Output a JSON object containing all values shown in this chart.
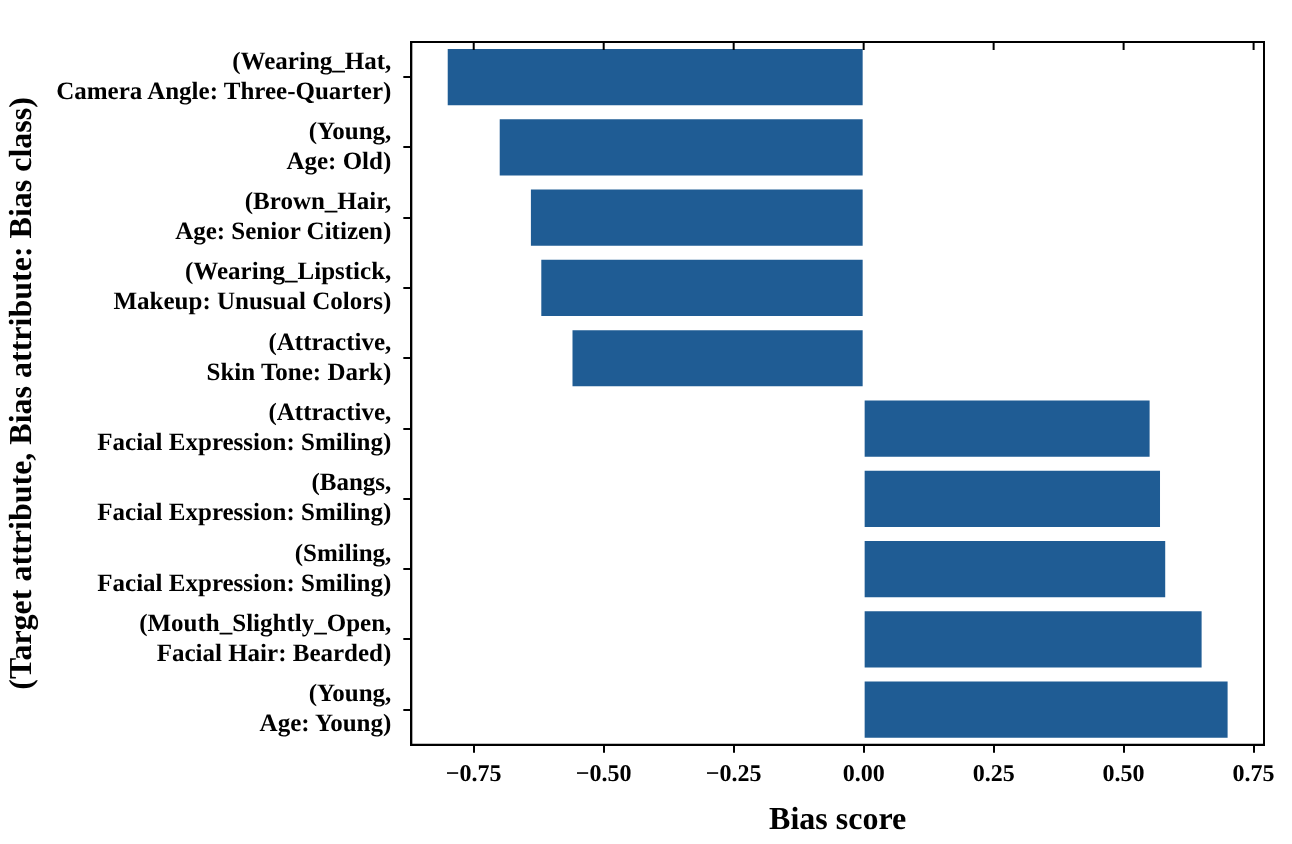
{
  "chart_data": {
    "type": "bar",
    "orientation": "horizontal",
    "xlabel": "Bias score",
    "ylabel": "(Target attribute, Bias attribute: Bias class)",
    "categories": [
      "(Wearing_Hat, Camera Angle: Three-Quarter)",
      "(Young, Age: Old)",
      "(Brown_Hair, Age: Senior Citizen)",
      "(Wearing_Lipstick, Makeup: Unusual Colors)",
      "(Attractive, Skin Tone: Dark)",
      "(Attractive, Facial Expression: Smiling)",
      "(Bangs, Facial Expression: Smiling)",
      "(Smiling, Facial Expression: Smiling)",
      "(Mouth_Slightly_Open, Facial Hair: Bearded)",
      "(Young, Age: Young)"
    ],
    "values": [
      -0.8,
      -0.7,
      -0.64,
      -0.62,
      -0.56,
      0.55,
      0.57,
      0.58,
      0.65,
      0.7
    ],
    "color": "#1f5c94",
    "xlim": [
      -0.87,
      0.77
    ],
    "xticks": [
      {
        "value": -0.75,
        "label": "−0.75"
      },
      {
        "value": -0.5,
        "label": "−0.50"
      },
      {
        "value": -0.25,
        "label": "−0.25"
      },
      {
        "value": 0,
        "label": "0.00"
      },
      {
        "value": 0.25,
        "label": "0.25"
      },
      {
        "value": 0.5,
        "label": "0.50"
      },
      {
        "value": 0.75,
        "label": "0.75"
      }
    ],
    "grid": false,
    "legend": false
  }
}
